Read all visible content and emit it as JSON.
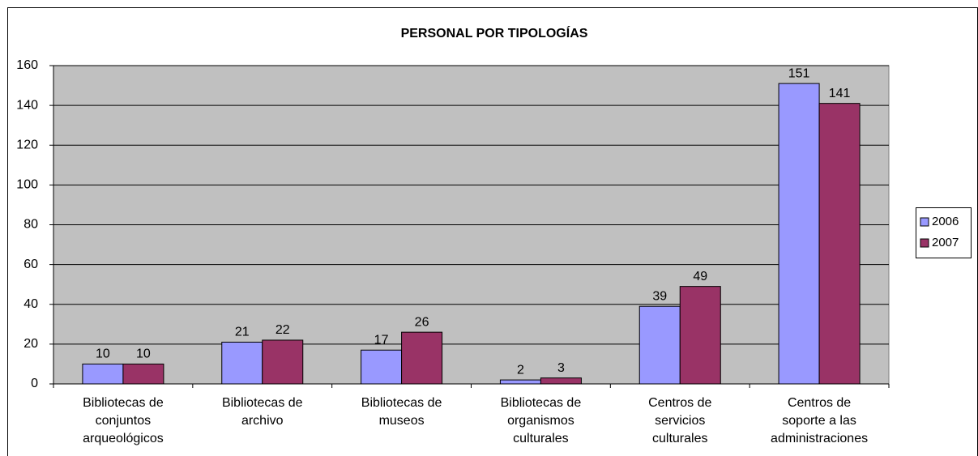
{
  "chart_data": {
    "type": "bar",
    "title": "PERSONAL POR TIPOLOGÍAS",
    "categories": [
      [
        "Bibliotecas de",
        "conjuntos",
        "arqueológicos"
      ],
      [
        "Bibliotecas de",
        "archivo"
      ],
      [
        "Bibliotecas de",
        "museos"
      ],
      [
        "Bibliotecas de",
        "organismos",
        "culturales"
      ],
      [
        "Centros de",
        "servicios",
        "culturales"
      ],
      [
        "Centros de",
        "soporte a las",
        "administraciones"
      ]
    ],
    "series": [
      {
        "name": "2006",
        "color": "#9999ff",
        "values": [
          10,
          21,
          17,
          2,
          39,
          151
        ]
      },
      {
        "name": "2007",
        "color": "#993366",
        "values": [
          10,
          22,
          26,
          3,
          49,
          141
        ]
      }
    ],
    "ylim": [
      0,
      160
    ],
    "yticks": [
      0,
      20,
      40,
      60,
      80,
      100,
      120,
      140,
      160
    ],
    "grid": true,
    "legend": "right"
  }
}
